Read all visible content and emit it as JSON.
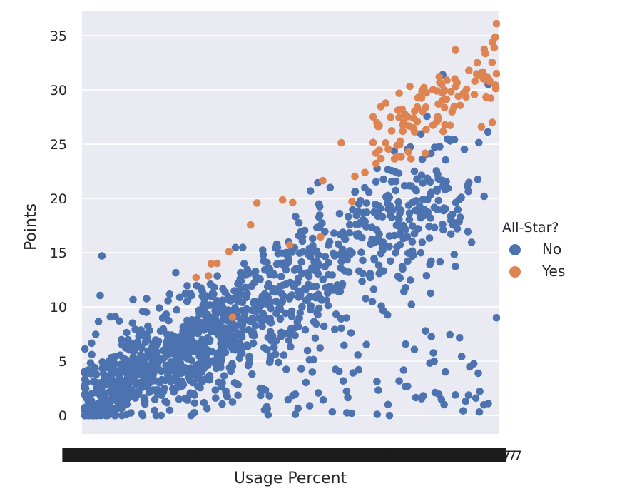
{
  "chart_data": {
    "type": "scatter",
    "title": "",
    "xlabel": "Usage Percent",
    "ylabel": "Points",
    "ylim": [
      -1.7,
      37.3
    ],
    "yticks": [
      0,
      5,
      10,
      15,
      20,
      25,
      30,
      35
    ],
    "x_axis_note": "categorical axis with overlapping tick labels (unreadable)",
    "grid": true,
    "background": "#eaeaf2",
    "legend": {
      "title": "All-Star?",
      "placement": "right",
      "entries": [
        {
          "label": "No",
          "color": "#4c72b0"
        },
        {
          "label": "Yes",
          "color": "#dd8452"
        }
      ]
    },
    "generator": {
      "note": "Approximate distribution of the visible point cloud; usage expressed as 0-1 fraction of the categorical x range.",
      "no_count": 1300,
      "yes_count": 120,
      "seed": 7
    }
  }
}
